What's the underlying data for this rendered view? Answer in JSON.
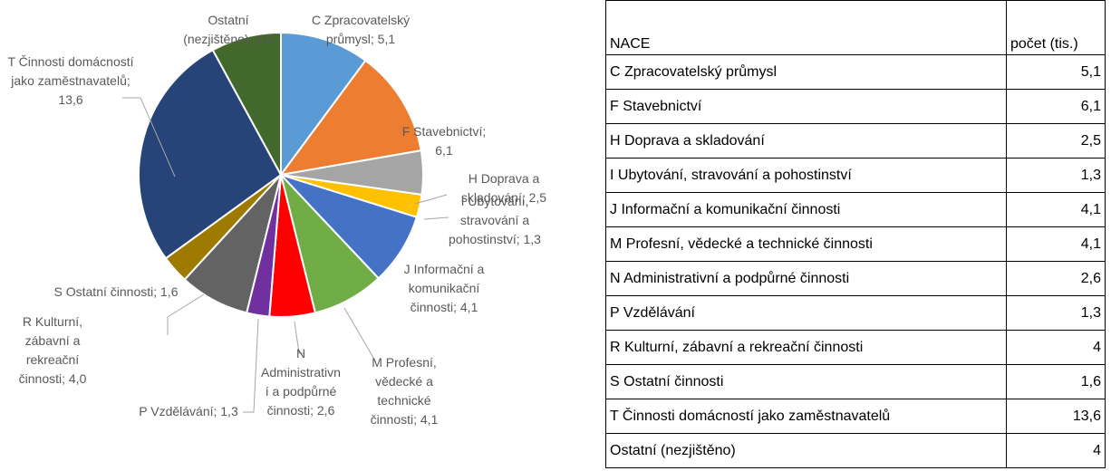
{
  "chart_data": {
    "type": "pie",
    "labels": [
      "C Zpracovatelský průmysl; 5,1",
      "F Stavebnictví; 6,1",
      "H Doprava a skladování; 2,5",
      "I Ubytování, stravování a pohostinství; 1,3",
      "J Informační a komunikační činnosti; 4,1",
      "M Profesní, vědecké a technické činnosti; 4,1",
      "N Administrativní a podpůrné činnosti; 2,6",
      "P Vzdělávání; 1,3",
      "R Kulturní, zábavní a rekreační činnosti; 4,0",
      "S Ostatní činnosti; 1,6",
      "T Činnosti domácností jako zaměstnavatelů; 13,6",
      "Ostatní (nezjištěno); 4,0"
    ],
    "values": [
      5.1,
      6.1,
      2.5,
      1.3,
      4.1,
      4.1,
      2.6,
      1.3,
      4.0,
      1.6,
      13.6,
      4.0
    ],
    "colors": [
      "#5b9bd5",
      "#ed7d31",
      "#a5a5a5",
      "#ffc000",
      "#4472c4",
      "#70ad47",
      "#ff0000",
      "#7030a0",
      "#636363",
      "#9e7a00",
      "#264478",
      "#43682b"
    ]
  },
  "table": {
    "header": [
      "NACE",
      "počet (tis.)"
    ],
    "rows": [
      [
        "C Zpracovatelský průmysl",
        "5,1"
      ],
      [
        "F Stavebnictví",
        "6,1"
      ],
      [
        "H Doprava a skladování",
        "2,5"
      ],
      [
        "I Ubytování, stravování a pohostinství",
        "1,3"
      ],
      [
        "J Informační a komunikační činnosti",
        "4,1"
      ],
      [
        "M Profesní, vědecké a technické činnosti",
        "4,1"
      ],
      [
        "N Administrativní a podpůrné činnosti",
        "2,6"
      ],
      [
        "P Vzdělávání",
        "1,3"
      ],
      [
        "R Kulturní, zábavní a rekreační činnosti",
        "4"
      ],
      [
        "S Ostatní činnosti",
        "1,6"
      ],
      [
        "T Činnosti domácností jako zaměstnavatelů",
        "13,6"
      ],
      [
        "Ostatní (nezjištěno)",
        "4"
      ]
    ]
  }
}
